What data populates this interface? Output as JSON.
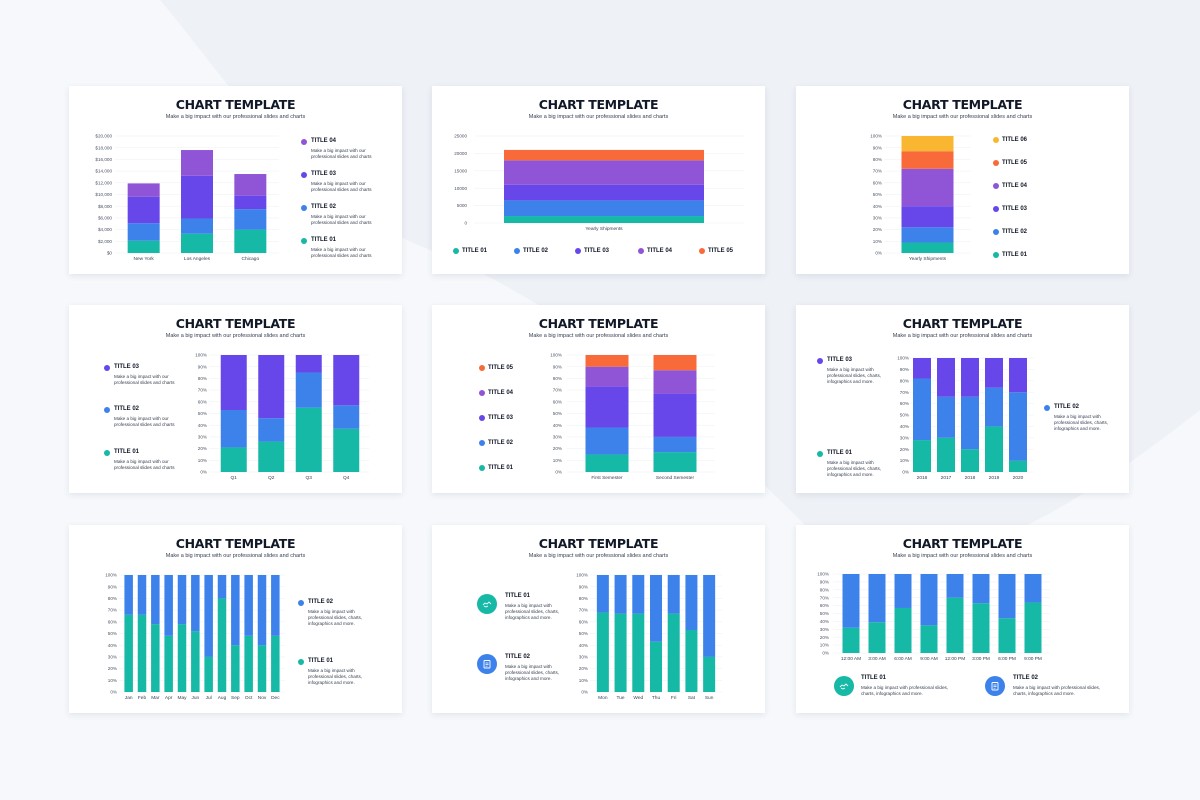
{
  "slide_title": "CHART TEMPLATE",
  "slide_subtitle": "Make a big impact with our professional slides and charts",
  "desc_short": "Make a big impact with our professional slides and charts",
  "desc_long": "Make a big impact with professional slides, charts, infographics and more.",
  "colors": {
    "teal": "#16b8a6",
    "blue": "#3d82ea",
    "indigo": "#6747ea",
    "violet": "#8f55d6",
    "orange": "#f86a3a",
    "yellow": "#f9b731"
  },
  "legend_titles": {
    "t1": "TITLE 01",
    "t2": "TITLE 02",
    "t3": "TITLE 03",
    "t4": "TITLE 04",
    "t5": "TITLE 05",
    "t6": "TITLE 06"
  },
  "icons": [
    "handshake-icon",
    "clipboard-icon"
  ],
  "chart_data": [
    {
      "type": "bar",
      "stacked": true,
      "categories": [
        "New York",
        "Los Angeles",
        "Chicago"
      ],
      "yticks": [
        "$0",
        "$2,000",
        "$4,000",
        "$6,000",
        "$8,000",
        "$10,000",
        "$12,000",
        "$14,000",
        "$16,000",
        "$18,000",
        "$20,000"
      ],
      "ylim": [
        0,
        20000
      ],
      "series": [
        {
          "name": "TITLE 01",
          "color": "#16b8a6",
          "values": [
            2100,
            3300,
            4000
          ]
        },
        {
          "name": "TITLE 02",
          "color": "#3d82ea",
          "values": [
            3000,
            2600,
            3500
          ]
        },
        {
          "name": "TITLE 03",
          "color": "#6747ea",
          "values": [
            4500,
            7300,
            2300
          ]
        },
        {
          "name": "TITLE 04",
          "color": "#8f55d6",
          "values": [
            2300,
            4400,
            3700
          ]
        }
      ]
    },
    {
      "type": "bar",
      "stacked": true,
      "categories": [
        "Yearly Shipments"
      ],
      "yticks": [
        "0",
        "5000",
        "10000",
        "15000",
        "20000",
        "25000"
      ],
      "ylim": [
        0,
        25000
      ],
      "series": [
        {
          "name": "TITLE 01",
          "color": "#16b8a6",
          "values": [
            2000
          ]
        },
        {
          "name": "TITLE 02",
          "color": "#3d82ea",
          "values": [
            4500
          ]
        },
        {
          "name": "TITLE 03",
          "color": "#6747ea",
          "values": [
            4500
          ]
        },
        {
          "name": "TITLE 04",
          "color": "#8f55d6",
          "values": [
            7000
          ]
        },
        {
          "name": "TITLE 05",
          "color": "#f86a3a",
          "values": [
            3000
          ]
        }
      ]
    },
    {
      "type": "bar",
      "stacked": true,
      "categories": [
        "Yearly Shipments"
      ],
      "yticks": [
        "0%",
        "10%",
        "20%",
        "30%",
        "40%",
        "50%",
        "60%",
        "70%",
        "80%",
        "90%",
        "100%"
      ],
      "ylim": [
        0,
        100
      ],
      "series": [
        {
          "name": "TITLE 01",
          "color": "#16b8a6",
          "values": [
            9
          ]
        },
        {
          "name": "TITLE 02",
          "color": "#3d82ea",
          "values": [
            13
          ]
        },
        {
          "name": "TITLE 03",
          "color": "#6747ea",
          "values": [
            18
          ]
        },
        {
          "name": "TITLE 04",
          "color": "#8f55d6",
          "values": [
            32
          ]
        },
        {
          "name": "TITLE 05",
          "color": "#f86a3a",
          "values": [
            15
          ]
        },
        {
          "name": "TITLE 06",
          "color": "#f9b731",
          "values": [
            13
          ]
        }
      ]
    },
    {
      "type": "bar",
      "stacked": true,
      "categories": [
        "Q1",
        "Q2",
        "Q3",
        "Q4"
      ],
      "yticks": [
        "0%",
        "10%",
        "20%",
        "30%",
        "40%",
        "50%",
        "60%",
        "70%",
        "80%",
        "90%",
        "100%"
      ],
      "ylim": [
        0,
        100
      ],
      "series": [
        {
          "name": "TITLE 01",
          "color": "#16b8a6",
          "values": [
            21,
            26,
            55,
            37
          ]
        },
        {
          "name": "TITLE 02",
          "color": "#3d82ea",
          "values": [
            32,
            20,
            30,
            20
          ]
        },
        {
          "name": "TITLE 03",
          "color": "#6747ea",
          "values": [
            47,
            54,
            15,
            43
          ]
        }
      ]
    },
    {
      "type": "bar",
      "stacked": true,
      "categories": [
        "First Semester",
        "Second Semester"
      ],
      "yticks": [
        "0%",
        "10%",
        "20%",
        "30%",
        "40%",
        "50%",
        "60%",
        "70%",
        "80%",
        "90%",
        "100%"
      ],
      "ylim": [
        0,
        100
      ],
      "series": [
        {
          "name": "TITLE 01",
          "color": "#16b8a6",
          "values": [
            15,
            17
          ]
        },
        {
          "name": "TITLE 02",
          "color": "#3d82ea",
          "values": [
            23,
            13
          ]
        },
        {
          "name": "TITLE 03",
          "color": "#6747ea",
          "values": [
            35,
            37
          ]
        },
        {
          "name": "TITLE 04",
          "color": "#8f55d6",
          "values": [
            17,
            20
          ]
        },
        {
          "name": "TITLE 05",
          "color": "#f86a3a",
          "values": [
            10,
            13
          ]
        }
      ]
    },
    {
      "type": "bar",
      "stacked": true,
      "categories": [
        "2016",
        "2017",
        "2018",
        "2019",
        "2020"
      ],
      "yticks": [
        "0%",
        "10%",
        "20%",
        "30%",
        "40%",
        "50%",
        "60%",
        "70%",
        "80%",
        "90%",
        "100%"
      ],
      "ylim": [
        0,
        100
      ],
      "series": [
        {
          "name": "TITLE 01",
          "color": "#16b8a6",
          "values": [
            28,
            30,
            20,
            40,
            10
          ]
        },
        {
          "name": "TITLE 02",
          "color": "#3d82ea",
          "values": [
            54,
            36,
            46,
            34,
            60
          ]
        },
        {
          "name": "TITLE 03",
          "color": "#6747ea",
          "values": [
            18,
            34,
            34,
            26,
            30
          ]
        }
      ]
    },
    {
      "type": "bar",
      "stacked": true,
      "categories": [
        "Jan",
        "Feb",
        "Mar",
        "Apr",
        "May",
        "Jun",
        "Jul",
        "Aug",
        "Sep",
        "Oct",
        "Nov",
        "Dec"
      ],
      "yticks": [
        "0%",
        "10%",
        "20%",
        "30%",
        "40%",
        "50%",
        "60%",
        "70%",
        "80%",
        "90%",
        "100%"
      ],
      "ylim": [
        0,
        100
      ],
      "series": [
        {
          "name": "TITLE 01",
          "color": "#16b8a6",
          "values": [
            66,
            66,
            58,
            48,
            58,
            52,
            30,
            80,
            40,
            48,
            40,
            48
          ]
        },
        {
          "name": "TITLE 02",
          "color": "#3d82ea",
          "values": [
            34,
            34,
            42,
            52,
            42,
            48,
            70,
            20,
            60,
            52,
            60,
            52
          ]
        }
      ]
    },
    {
      "type": "bar",
      "stacked": true,
      "categories": [
        "Mon",
        "Tue",
        "Wed",
        "Thu",
        "Fri",
        "Sat",
        "Sun"
      ],
      "yticks": [
        "0%",
        "10%",
        "20%",
        "30%",
        "40%",
        "50%",
        "60%",
        "70%",
        "80%",
        "90%",
        "100%"
      ],
      "ylim": [
        0,
        100
      ],
      "series": [
        {
          "name": "TITLE 01",
          "color": "#16b8a6",
          "values": [
            68,
            67,
            67,
            43,
            67,
            53,
            30
          ]
        },
        {
          "name": "TITLE 02",
          "color": "#3d82ea",
          "values": [
            32,
            33,
            33,
            57,
            33,
            47,
            70
          ]
        }
      ]
    },
    {
      "type": "bar",
      "stacked": true,
      "categories": [
        "12:00 AM",
        "3:00 AM",
        "6:00 AM",
        "9:00 AM",
        "12:00 PM",
        "3:00 PM",
        "6:00 PM",
        "9:00 PM"
      ],
      "yticks": [
        "0%",
        "10%",
        "20%",
        "30%",
        "40%",
        "50%",
        "60%",
        "70%",
        "80%",
        "90%",
        "100%"
      ],
      "ylim": [
        0,
        100
      ],
      "series": [
        {
          "name": "TITLE 01",
          "color": "#16b8a6",
          "values": [
            32,
            39,
            57,
            35,
            70,
            63,
            44,
            64
          ]
        },
        {
          "name": "TITLE 02",
          "color": "#3d82ea",
          "values": [
            68,
            61,
            43,
            65,
            30,
            37,
            56,
            36
          ]
        }
      ]
    }
  ]
}
